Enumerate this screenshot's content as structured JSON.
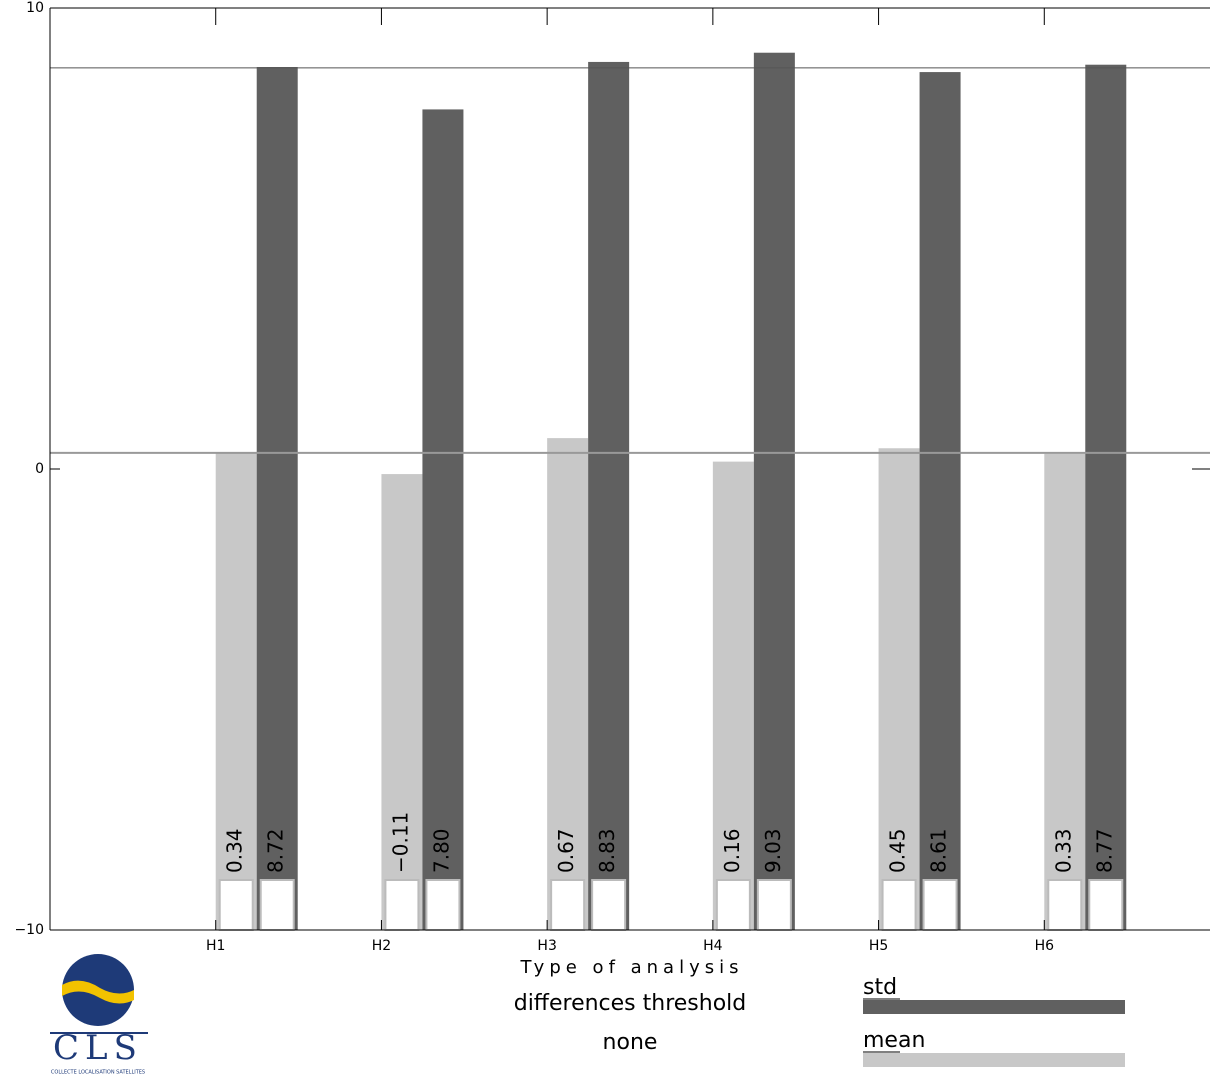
{
  "chart_data": {
    "type": "bar",
    "x_label": "Type of analysis",
    "subtitle": "differences threshold",
    "subtitle2": "none",
    "categories": [
      "H1",
      "H2",
      "H3",
      "H4",
      "H5",
      "H6"
    ],
    "series": [
      {
        "name": "mean",
        "color": "#c8c8c8",
        "values": [
          0.34,
          -0.11,
          0.67,
          0.16,
          0.45,
          0.33
        ],
        "value_labels": [
          "0.34",
          "−0.11",
          "0.67",
          "0.16",
          "0.45",
          "0.33"
        ]
      },
      {
        "name": "std",
        "color": "#606060",
        "values": [
          8.72,
          7.8,
          8.83,
          9.03,
          8.61,
          8.77
        ],
        "value_labels": [
          "8.72",
          "7.80",
          "8.83",
          "9.03",
          "8.61",
          "8.77"
        ]
      }
    ],
    "reference_lines": [
      8.7,
      0.35
    ],
    "ylim": [
      -10,
      10
    ],
    "yticks": [
      {
        "value": -10,
        "label": "−10"
      },
      0,
      10
    ],
    "logo": {
      "text": "CLS",
      "subtitle": "COLLECTE LOCALISATION SATELLITES"
    }
  }
}
